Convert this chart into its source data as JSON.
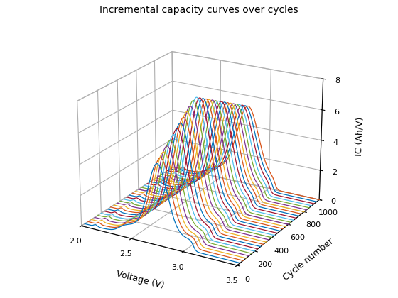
{
  "title": "Incremental capacity curves over cycles",
  "xlabel": "Voltage (V)",
  "ylabel": "Cycle number",
  "zlabel": "IC (Ah/V)",
  "n_curves": 30,
  "cycle_min": 0,
  "cycle_max": 1000,
  "voltage_min": 2.0,
  "voltage_max": 3.5,
  "ic_min": 0,
  "ic_max": 8,
  "voltage_ticks": [
    2.0,
    2.5,
    3.0,
    3.5
  ],
  "cycle_ticks": [
    0,
    200,
    400,
    600,
    800,
    1000
  ],
  "ic_ticks": [
    0,
    2,
    4,
    6,
    8
  ],
  "elev": 22,
  "azim": -60,
  "matlab_colors": [
    "#0072BD",
    "#D95319",
    "#EDB120",
    "#7E2F8E",
    "#77AC30",
    "#4DBEEE",
    "#A2142F",
    "#0072BD",
    "#D95319",
    "#EDB120",
    "#7E2F8E",
    "#77AC30",
    "#4DBEEE",
    "#A2142F",
    "#0072BD",
    "#D95319",
    "#EDB120",
    "#7E2F8E",
    "#77AC30",
    "#4DBEEE",
    "#A2142F",
    "#0072BD",
    "#D95319",
    "#EDB120",
    "#7E2F8E",
    "#77AC30",
    "#4DBEEE",
    "#A2142F",
    "#0072BD",
    "#D95319"
  ]
}
